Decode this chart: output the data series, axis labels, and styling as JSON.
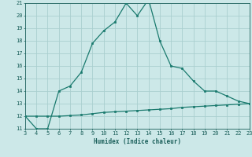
{
  "xlabel": "Humidex (Indice chaleur)",
  "bg_color": "#cce8e8",
  "grid_color": "#aacfcf",
  "line_color": "#1a7a6e",
  "marker_color": "#1a7a6e",
  "x_line1": [
    3,
    4,
    5,
    6,
    7,
    8,
    9,
    10,
    11,
    12,
    13,
    14,
    15,
    16,
    17,
    18,
    19,
    20,
    21,
    22,
    23
  ],
  "y_line1": [
    12,
    11,
    11,
    14,
    14.4,
    15.5,
    17.8,
    18.8,
    19.5,
    21,
    20,
    21.3,
    18,
    16,
    15.8,
    14.8,
    14,
    14,
    13.6,
    13.2,
    13
  ],
  "x_line2": [
    3,
    4,
    5,
    6,
    7,
    8,
    9,
    10,
    11,
    12,
    13,
    14,
    15,
    16,
    17,
    18,
    19,
    20,
    21,
    22,
    23
  ],
  "y_line2": [
    12,
    12,
    12,
    12,
    12.05,
    12.1,
    12.2,
    12.3,
    12.35,
    12.4,
    12.45,
    12.5,
    12.55,
    12.6,
    12.7,
    12.75,
    12.8,
    12.85,
    12.9,
    12.95,
    13.0
  ],
  "xlim": [
    3,
    23
  ],
  "ylim": [
    11,
    21
  ],
  "yticks": [
    11,
    12,
    13,
    14,
    15,
    16,
    17,
    18,
    19,
    20,
    21
  ],
  "xticks": [
    3,
    4,
    5,
    6,
    7,
    8,
    9,
    10,
    11,
    12,
    13,
    14,
    15,
    16,
    17,
    18,
    19,
    20,
    21,
    22,
    23
  ],
  "font_color": "#1a5f5a",
  "axis_fontsize": 5.5,
  "tick_fontsize": 5.0,
  "linewidth": 0.9,
  "markersize": 1.8
}
